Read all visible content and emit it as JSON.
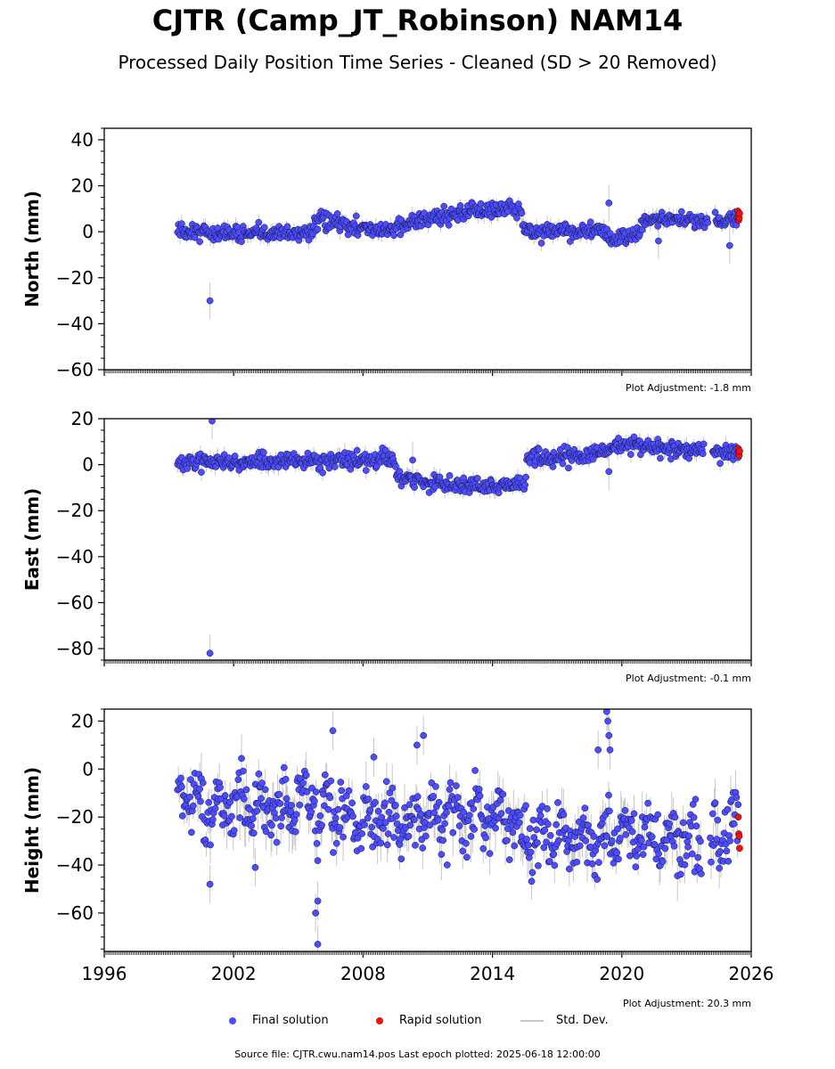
{
  "title": "CJTR (Camp_JT_Robinson) NAM14",
  "subtitle": "Processed Daily Position Time Series - Cleaned (SD > 20 Removed)",
  "legend": {
    "final": "Final solution",
    "rapid": "Rapid solution",
    "std": "Std. Dev."
  },
  "footer": "Source file: CJTR.cwu.nam14.pos  Last epoch plotted: 2025-06-18 12:00:00",
  "colors": {
    "final": "#4d4dff",
    "rapid": "#ee1111",
    "std": "#c8c8c8"
  },
  "chart_data": [
    {
      "type": "scatter",
      "ylabel": "North (mm)",
      "ylim": [
        -60,
        45
      ],
      "yticks": [
        40,
        20,
        0,
        -20,
        -40,
        -60
      ],
      "xlim": [
        1996,
        2026
      ],
      "adjustment": "Plot Adjustment: -1.8 mm",
      "series": [
        {
          "name": "Final solution",
          "trend": [
            [
              1999.4,
              0
            ],
            [
              2003,
              -1
            ],
            [
              2005.5,
              0
            ],
            [
              2006,
              5
            ],
            [
              2009,
              0
            ],
            [
              2011,
              6
            ],
            [
              2013,
              9
            ],
            [
              2015.3,
              10
            ],
            [
              2015.5,
              0
            ],
            [
              2019,
              0
            ],
            [
              2019.5,
              -3
            ],
            [
              2020.8,
              -2
            ],
            [
              2021.0,
              5
            ],
            [
              2023.5,
              5
            ],
            [
              2024.5,
              5
            ],
            [
              2025.4,
              5
            ]
          ],
          "gaps": [
            [
              2024.0,
              2024.3
            ]
          ],
          "scatter": 2.5,
          "outliers": [
            [
              2000.9,
              -30
            ],
            [
              2019.4,
              12.5
            ],
            [
              2021.7,
              -4
            ],
            [
              2025.0,
              -6
            ]
          ]
        },
        {
          "name": "Rapid solution",
          "points": [
            [
              2025.38,
              9
            ],
            [
              2025.4,
              7
            ],
            [
              2025.42,
              5
            ],
            [
              2025.44,
              6
            ],
            [
              2025.46,
              8
            ]
          ]
        }
      ]
    },
    {
      "type": "scatter",
      "ylabel": "East (mm)",
      "ylim": [
        -85,
        20
      ],
      "yticks": [
        20,
        0,
        -20,
        -40,
        -60,
        -80
      ],
      "xlim": [
        1996,
        2026
      ],
      "adjustment": "Plot Adjustment: -0.1 mm",
      "series": [
        {
          "name": "Final solution",
          "trend": [
            [
              1999.4,
              1
            ],
            [
              2009.4,
              2
            ],
            [
              2009.6,
              -5
            ],
            [
              2011,
              -8
            ],
            [
              2013,
              -9
            ],
            [
              2015.5,
              -9
            ],
            [
              2015.6,
              3
            ],
            [
              2017,
              3
            ],
            [
              2019,
              5
            ],
            [
              2020,
              9
            ],
            [
              2021,
              8
            ],
            [
              2023,
              6
            ],
            [
              2023.8,
              6
            ],
            [
              2024.5,
              6
            ],
            [
              2025.4,
              5
            ]
          ],
          "gaps": [
            [
              2023.8,
              2024.2
            ]
          ],
          "scatter": 2.5,
          "outliers": [
            [
              2001.0,
              19
            ],
            [
              2000.9,
              -82
            ],
            [
              2019.4,
              -3
            ],
            [
              2010.3,
              2
            ]
          ]
        },
        {
          "name": "Rapid solution",
          "points": [
            [
              2025.4,
              7
            ],
            [
              2025.42,
              5
            ],
            [
              2025.44,
              4
            ],
            [
              2025.46,
              6
            ]
          ]
        }
      ]
    },
    {
      "type": "scatter",
      "ylabel": "Height (mm)",
      "ylim": [
        -76,
        25
      ],
      "yticks": [
        20,
        0,
        -20,
        -40,
        -60
      ],
      "xlim": [
        1996,
        2026
      ],
      "xticks": [
        "1996",
        "2002",
        "2008",
        "2014",
        "2020",
        "2026"
      ],
      "adjustment": "Plot Adjustment: 20.3 mm",
      "series": [
        {
          "name": "Final solution",
          "trend": [
            [
              1999.4,
              -5
            ],
            [
              2000.5,
              -15
            ],
            [
              2002,
              -15
            ],
            [
              2004,
              -17
            ],
            [
              2005.5,
              -12
            ],
            [
              2006,
              -20
            ],
            [
              2008,
              -20
            ],
            [
              2010,
              -22
            ],
            [
              2012,
              -18
            ],
            [
              2014,
              -18
            ],
            [
              2016,
              -28
            ],
            [
              2018,
              -28
            ],
            [
              2020,
              -28
            ],
            [
              2022,
              -28
            ],
            [
              2024,
              -30
            ],
            [
              2025.4,
              -25
            ]
          ],
          "gaps": [
            [
              2023.7,
              2024.1
            ]
          ],
          "scatter": 9,
          "outliers": [
            [
              2005.9,
              -73
            ],
            [
              2005.8,
              -60
            ],
            [
              2005.9,
              -55
            ],
            [
              2019.3,
              24
            ],
            [
              2019.35,
              20
            ],
            [
              2019.4,
              14
            ],
            [
              2019.45,
              8
            ],
            [
              2018.9,
              8
            ],
            [
              2010.8,
              14
            ],
            [
              2010.5,
              10
            ],
            [
              2006.6,
              16
            ],
            [
              2008.5,
              5
            ],
            [
              2003,
              -41
            ],
            [
              2000.9,
              -48
            ]
          ]
        },
        {
          "name": "Rapid solution",
          "points": [
            [
              2025.4,
              -20
            ],
            [
              2025.42,
              -27
            ],
            [
              2025.44,
              -28
            ],
            [
              2025.46,
              -33
            ]
          ]
        }
      ]
    }
  ]
}
